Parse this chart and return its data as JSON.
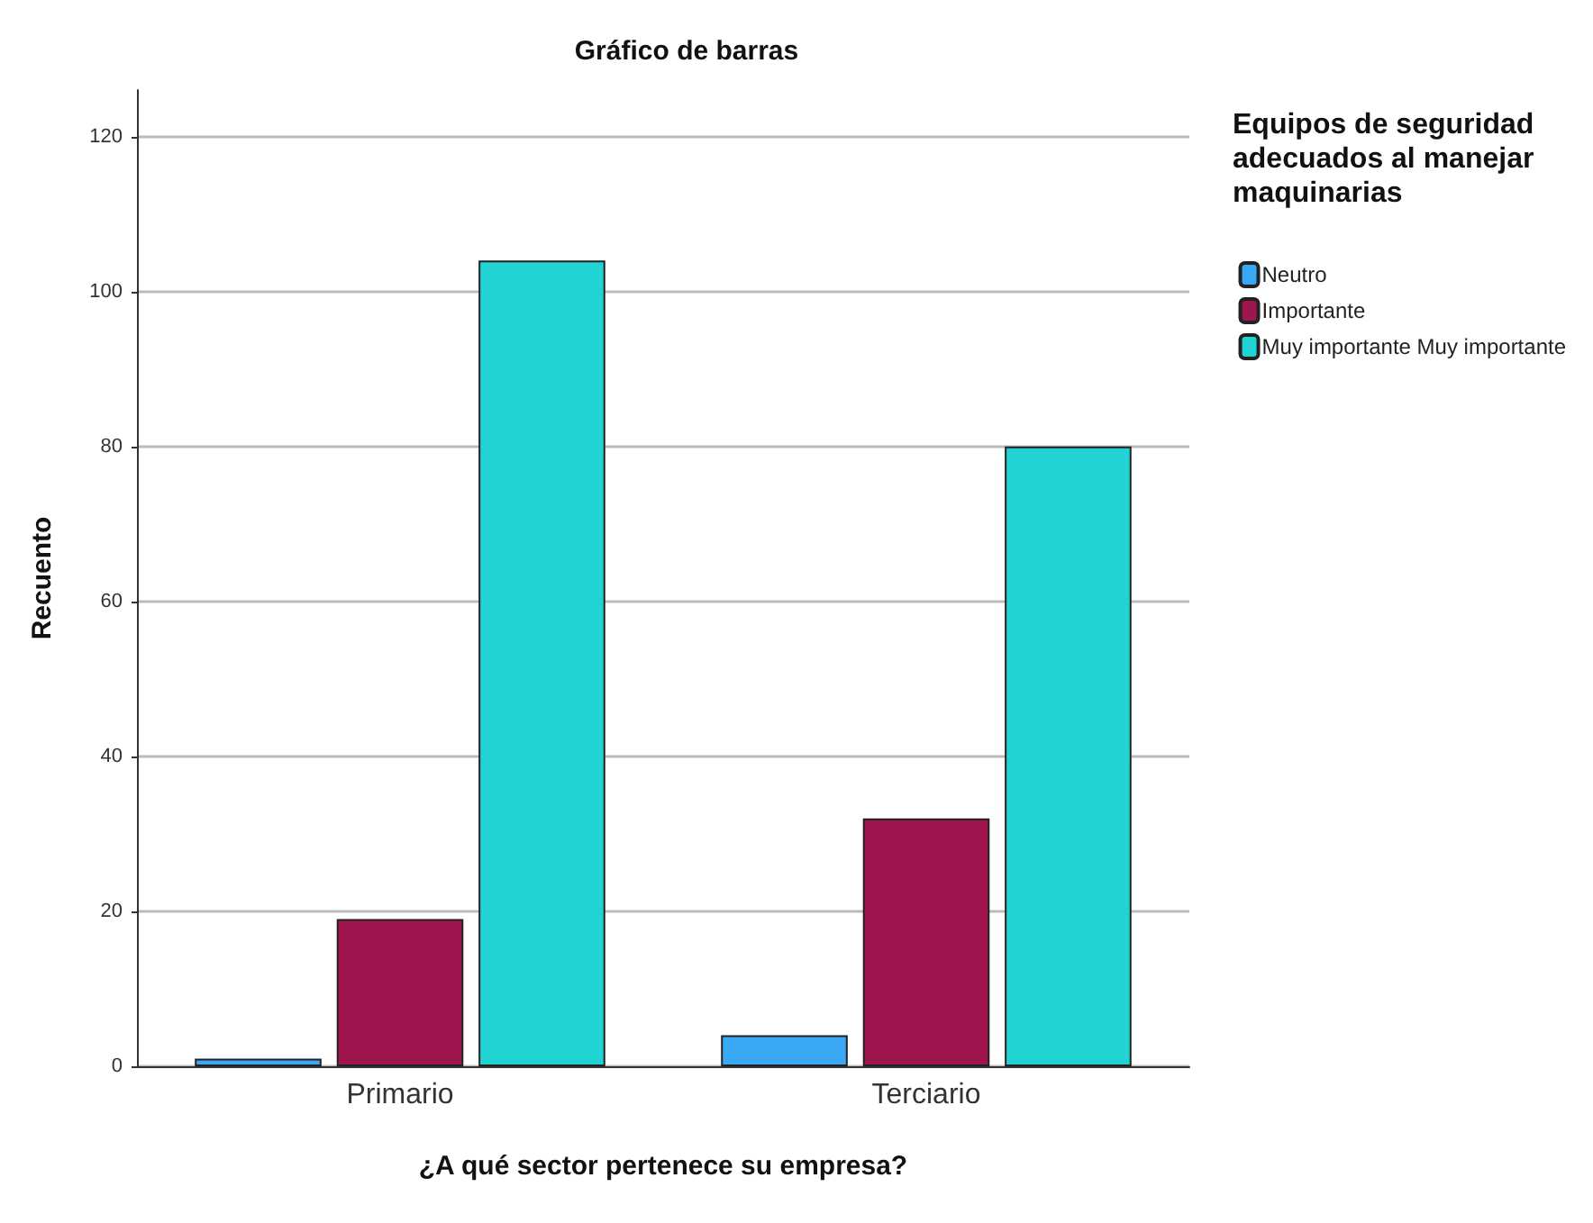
{
  "chart_data": {
    "type": "bar",
    "title": "Gráfico de barras",
    "xlabel": "¿A qué sector pertenece su empresa?",
    "ylabel": "Recuento",
    "legend_title": "Equipos de seguridad adecuados al manejar maquinarias",
    "categories": [
      "Primario",
      "Terciario"
    ],
    "series": [
      {
        "name": "Neutro",
        "color": "#3aa8f5",
        "values": [
          1,
          4
        ]
      },
      {
        "name": "Importante",
        "color": "#9e1550",
        "values": [
          19,
          32
        ]
      },
      {
        "name": "Muy importante Muy importante",
        "color": "#22d3d3",
        "values": [
          104,
          80
        ]
      }
    ],
    "ylim": [
      0,
      126
    ],
    "yticks": [
      0,
      20,
      40,
      60,
      80,
      100,
      120
    ],
    "grid": "y",
    "legend": "top right"
  }
}
